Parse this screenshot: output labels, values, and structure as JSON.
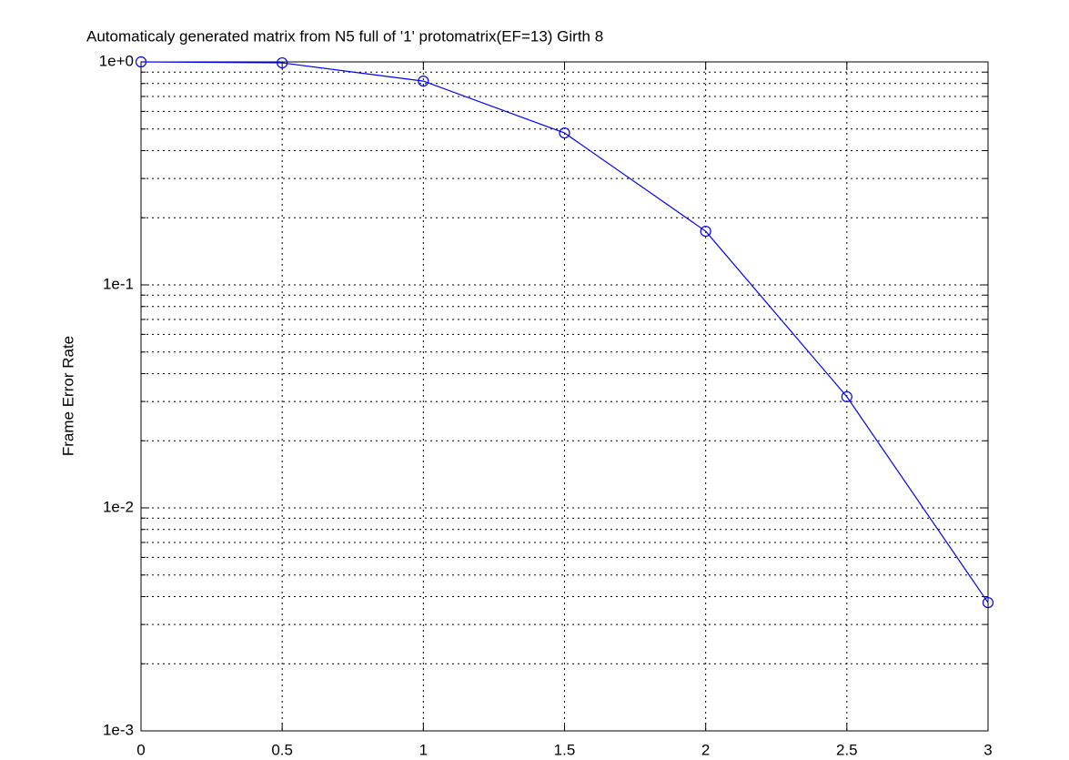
{
  "chart_data": {
    "type": "line",
    "title": "Automaticaly generated matrix from N5 full of '1' protomatrix(EF=13) Girth 8",
    "y_label": "Frame Error Rate",
    "x": [
      0,
      0.5,
      1,
      1.5,
      2,
      2.5,
      3
    ],
    "values": [
      1.0,
      0.99,
      0.82,
      0.48,
      0.174,
      0.0315,
      0.00376
    ],
    "color": "#0000ff",
    "marker": "circle",
    "xlim": [
      0,
      3
    ],
    "xticks": [
      0,
      0.5,
      1,
      1.5,
      2,
      2.5,
      3
    ],
    "ylim": [
      0.001,
      1
    ],
    "yticks": [
      {
        "value": 0.001,
        "label": "1e-3"
      },
      {
        "value": 0.01,
        "label": "1e-2"
      },
      {
        "value": 0.1,
        "label": "1e-1"
      },
      {
        "value": 1,
        "label": "1e+0"
      }
    ],
    "log_y": true,
    "grid": true,
    "minor_grid": true
  }
}
